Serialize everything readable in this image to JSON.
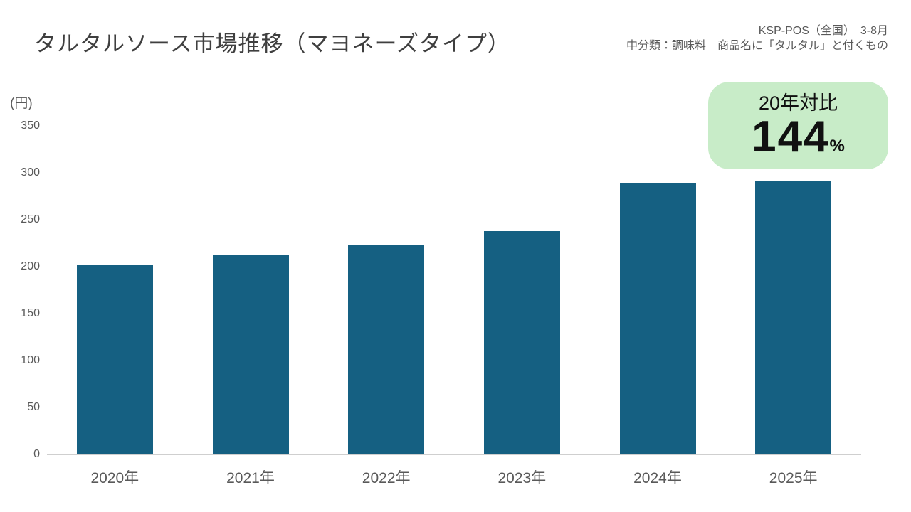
{
  "page": {
    "title": "タルタルソース市場推移（マヨネーズタイプ）",
    "source": {
      "line1": "KSP-POS（全国）　3-8月",
      "line2": "中分類：調味料　商品名に「タルタル」と付くもの"
    }
  },
  "badge": {
    "label": "20年対比",
    "value": "144",
    "unit": "%",
    "bg_color": "#c8ecc8",
    "text_color": "#111111"
  },
  "chart_data": {
    "type": "bar",
    "title": "タルタルソース市場推移（マヨネーズタイプ）",
    "y_unit_label": "(円)",
    "xlabel": "",
    "ylabel": "円",
    "categories": [
      "2020年",
      "2021年",
      "2022年",
      "2023年",
      "2024年",
      "2025年"
    ],
    "values": [
      202,
      213,
      223,
      238,
      289,
      291
    ],
    "ylim": [
      0,
      350
    ],
    "yticks": [
      0,
      50,
      100,
      150,
      200,
      250,
      300,
      350
    ],
    "bar_color": "#156082",
    "axis_line_color": "#cfcfcf",
    "grid": false,
    "legend": false,
    "annotation": "20年対比 144%"
  }
}
